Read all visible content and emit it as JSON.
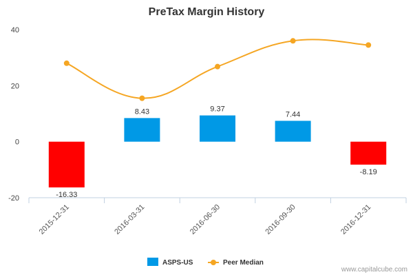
{
  "chart_data": {
    "type": "bar",
    "title": "PreTax Margin History",
    "categories": [
      "2015-12-31",
      "2016-03-31",
      "2016-06-30",
      "2016-09-30",
      "2016-12-31"
    ],
    "series": [
      {
        "name": "ASPS-US",
        "kind": "bar",
        "values": [
          -16.33,
          8.43,
          9.37,
          7.44,
          -8.19
        ],
        "labels": [
          "-16.33",
          "8.43",
          "9.37",
          "7.44",
          "-8.19"
        ],
        "color_positive": "#0099e6",
        "color_negative": "#ff0000"
      },
      {
        "name": "Peer Median",
        "kind": "line",
        "values": [
          28,
          15.5,
          26.8,
          36,
          34.5
        ],
        "color": "#f5a623"
      }
    ],
    "ylim": [
      -20,
      40
    ],
    "yticks": [
      -20,
      0,
      20,
      40
    ],
    "grid": false,
    "legend_position": "bottom-center"
  },
  "credit": "www.capitalcube.com"
}
